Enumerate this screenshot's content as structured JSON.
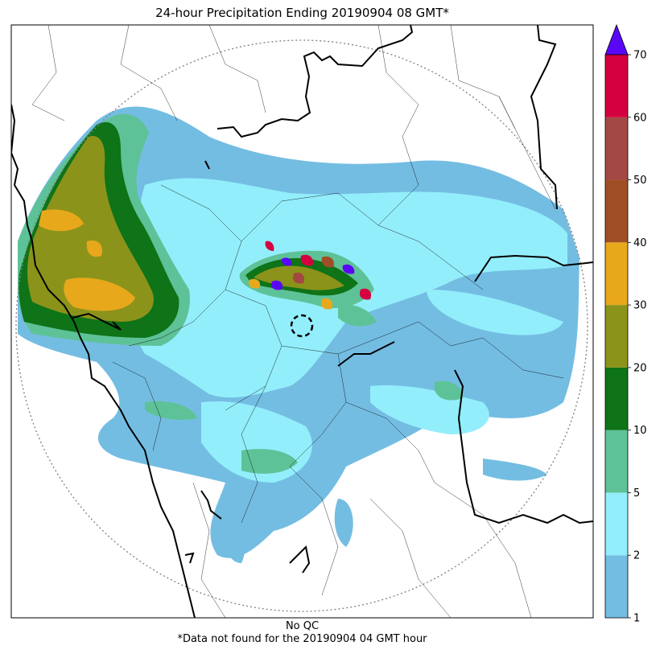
{
  "title": "24-hour Precipitation Ending 20190904 08 GMT*",
  "footer": {
    "qc_note": "No QC",
    "missing_note": "*Data not found for the 20190904 04 GMT hour"
  },
  "colorbar": {
    "ticks": [
      "1",
      "2",
      "5",
      "10",
      "20",
      "30",
      "40",
      "50",
      "60",
      "70"
    ],
    "colors": [
      "#74bde2",
      "#93eefb",
      "#5ec298",
      "#0f7317",
      "#8c931a",
      "#e8a81c",
      "#a04e25",
      "#a44843",
      "#d5003f"
    ],
    "overflow_color": "#5a07f7",
    "extend": "max"
  },
  "colors": {
    "boundary": "#000000",
    "radar_range_ring": "#808080",
    "frame": "#000000"
  }
}
